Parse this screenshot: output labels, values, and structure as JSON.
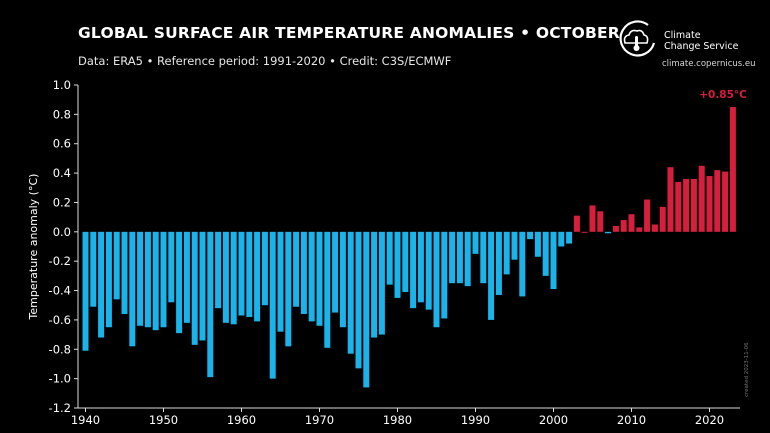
{
  "header": {
    "title": "GLOBAL SURFACE AIR TEMPERATURE ANOMALIES • OCTOBER",
    "subtitle": "Data: ERA5 • Reference period: 1991-2020 • Credit: C3S/ECMWF"
  },
  "logo": {
    "name_line1": "Climate",
    "name_line2": "Change Service",
    "url": "climate.copernicus.eu"
  },
  "side_credit": "created 2023-11-06",
  "colors": {
    "background": "#000000",
    "negative": "#1ab4ea",
    "positive": "#d61f3c",
    "text": "#ffffff"
  },
  "chart_data": {
    "type": "bar",
    "title": "GLOBAL SURFACE AIR TEMPERATURE ANOMALIES • OCTOBER",
    "xlabel": "",
    "ylabel": "Temperature anomaly (°C)",
    "xlim": [
      1940,
      2023
    ],
    "ylim": [
      -1.2,
      1.0
    ],
    "yticks": [
      "1.0",
      "0.8",
      "0.6",
      "0.4",
      "0.2",
      "0.0",
      "-0.2",
      "-0.4",
      "-0.6",
      "-0.8",
      "-1.0",
      "-1.2"
    ],
    "xticks": [
      "1940",
      "1950",
      "1960",
      "1970",
      "1980",
      "1990",
      "2000",
      "2010",
      "2020"
    ],
    "grid": false,
    "annotation": "+0.85°C",
    "x": [
      1940,
      1941,
      1942,
      1943,
      1944,
      1945,
      1946,
      1947,
      1948,
      1949,
      1950,
      1951,
      1952,
      1953,
      1954,
      1955,
      1956,
      1957,
      1958,
      1959,
      1960,
      1961,
      1962,
      1963,
      1964,
      1965,
      1966,
      1967,
      1968,
      1969,
      1970,
      1971,
      1972,
      1973,
      1974,
      1975,
      1976,
      1977,
      1978,
      1979,
      1980,
      1981,
      1982,
      1983,
      1984,
      1985,
      1986,
      1987,
      1988,
      1989,
      1990,
      1991,
      1992,
      1993,
      1994,
      1995,
      1996,
      1997,
      1998,
      1999,
      2000,
      2001,
      2002,
      2003,
      2004,
      2005,
      2006,
      2007,
      2008,
      2009,
      2010,
      2011,
      2012,
      2013,
      2014,
      2015,
      2016,
      2017,
      2018,
      2019,
      2020,
      2021,
      2022,
      2023
    ],
    "values": [
      -0.81,
      -0.51,
      -0.72,
      -0.65,
      -0.46,
      -0.56,
      -0.78,
      -0.64,
      -0.65,
      -0.67,
      -0.65,
      -0.48,
      -0.69,
      -0.62,
      -0.77,
      -0.74,
      -0.99,
      -0.52,
      -0.62,
      -0.63,
      -0.57,
      -0.58,
      -0.61,
      -0.5,
      -1.0,
      -0.68,
      -0.78,
      -0.51,
      -0.56,
      -0.61,
      -0.64,
      -0.79,
      -0.55,
      -0.65,
      -0.83,
      -0.93,
      -1.06,
      -0.72,
      -0.7,
      -0.36,
      -0.45,
      -0.41,
      -0.52,
      -0.48,
      -0.53,
      -0.65,
      -0.59,
      -0.35,
      -0.35,
      -0.37,
      -0.15,
      -0.35,
      -0.6,
      -0.43,
      -0.29,
      -0.19,
      -0.44,
      -0.05,
      -0.17,
      -0.3,
      -0.39,
      -0.1,
      -0.08,
      0.11,
      0.0,
      0.18,
      0.14,
      -0.01,
      0.04,
      0.08,
      0.12,
      0.03,
      0.22,
      0.05,
      0.17,
      0.44,
      0.34,
      0.36,
      0.36,
      0.45,
      0.38,
      0.42,
      0.41,
      0.85
    ]
  }
}
